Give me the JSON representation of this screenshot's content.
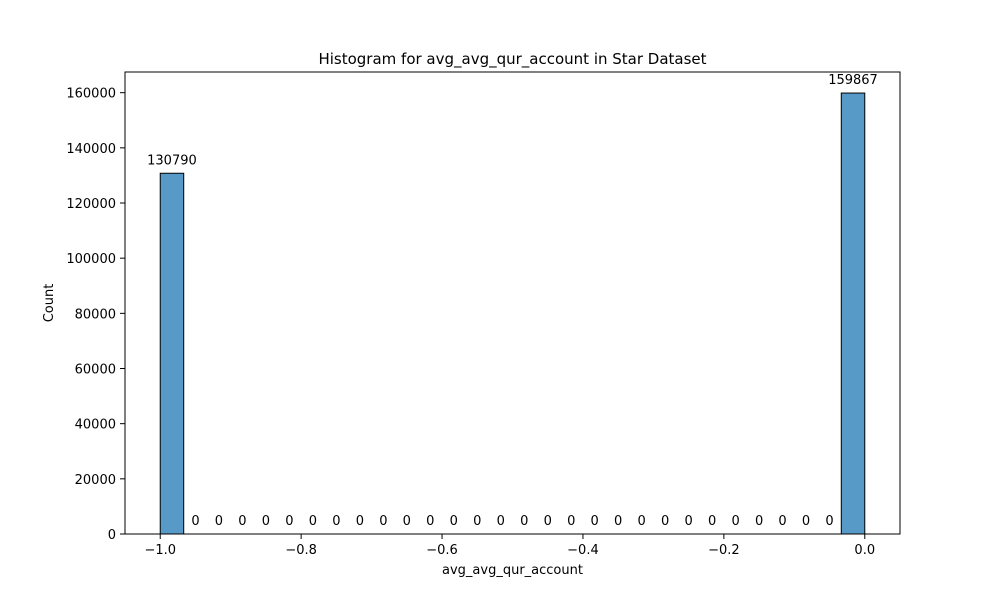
{
  "chart_data": {
    "type": "bar",
    "title": "Histogram for avg_avg_qur_account in Star Dataset",
    "xlabel": "avg_avg_qur_account",
    "ylabel": "Count",
    "xlim": [
      -1.05,
      0.05
    ],
    "ylim": [
      0,
      167500
    ],
    "xticks": [
      -1.0,
      -0.8,
      -0.6,
      -0.4,
      -0.2,
      0.0
    ],
    "xtick_labels": [
      "−1.0",
      "−0.8",
      "−0.6",
      "−0.4",
      "−0.2",
      "0.0"
    ],
    "yticks": [
      0,
      20000,
      40000,
      60000,
      80000,
      100000,
      120000,
      140000,
      160000
    ],
    "ytick_labels": [
      "0",
      "20000",
      "40000",
      "60000",
      "80000",
      "100000",
      "120000",
      "140000",
      "160000"
    ],
    "bins": {
      "start": -1.0,
      "end": 0.0,
      "count": 30
    },
    "values": [
      130790,
      0,
      0,
      0,
      0,
      0,
      0,
      0,
      0,
      0,
      0,
      0,
      0,
      0,
      0,
      0,
      0,
      0,
      0,
      0,
      0,
      0,
      0,
      0,
      0,
      0,
      0,
      0,
      0,
      159867
    ],
    "bar_labels": [
      "130790",
      "0",
      "0",
      "0",
      "0",
      "0",
      "0",
      "0",
      "0",
      "0",
      "0",
      "0",
      "0",
      "0",
      "0",
      "0",
      "0",
      "0",
      "0",
      "0",
      "0",
      "0",
      "0",
      "0",
      "0",
      "0",
      "0",
      "0",
      "0",
      "159867"
    ],
    "bar_color": "#5799c7",
    "bar_edge_color": "#000000",
    "grid": false,
    "legend": "none"
  }
}
